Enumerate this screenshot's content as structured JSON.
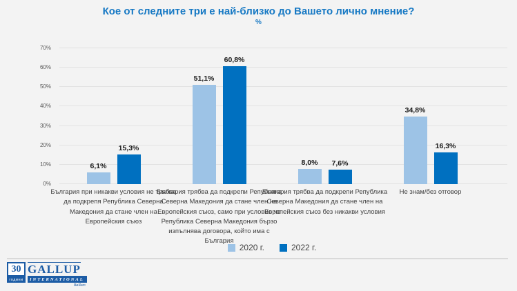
{
  "title": "Кое от следните три е най-близко до Вашето лично мнение?",
  "subtitle": "%",
  "chart_data": {
    "type": "bar",
    "categories": [
      "България при никакви условия не трябва да подкрепя Република Северна Македония да стане член на Европейския съюз",
      "България трябва да подкрепи Република Северна Македония да стане член на Европейския съюз, само при условие че Република Северна Македония бързо изпълнява договора, който има с България",
      "България трябва да подкрепи Република Северна Македония да стане член на Европейския съюз без никакви условия",
      "Не знам/без отговор"
    ],
    "series": [
      {
        "name": "2020 г.",
        "color": "#9dc3e6",
        "values": [
          6.1,
          51.1,
          8.0,
          34.8
        ]
      },
      {
        "name": "2022 г.",
        "color": "#0070c0",
        "values": [
          15.3,
          60.8,
          7.6,
          16.3
        ]
      }
    ],
    "value_label_format": "comma_decimal_percent",
    "ylim": [
      0,
      70
    ],
    "ytick_step": 10,
    "ytick_labels": [
      "0%",
      "10%",
      "20%",
      "30%",
      "40%",
      "50%",
      "60%",
      "70%"
    ],
    "grid": true,
    "legend_position": "bottom"
  },
  "logo": {
    "years_number": "30",
    "years_word": "години",
    "brand": "GALLUP",
    "brand_line2": "INTERNATIONAL",
    "region": "Balkan"
  }
}
